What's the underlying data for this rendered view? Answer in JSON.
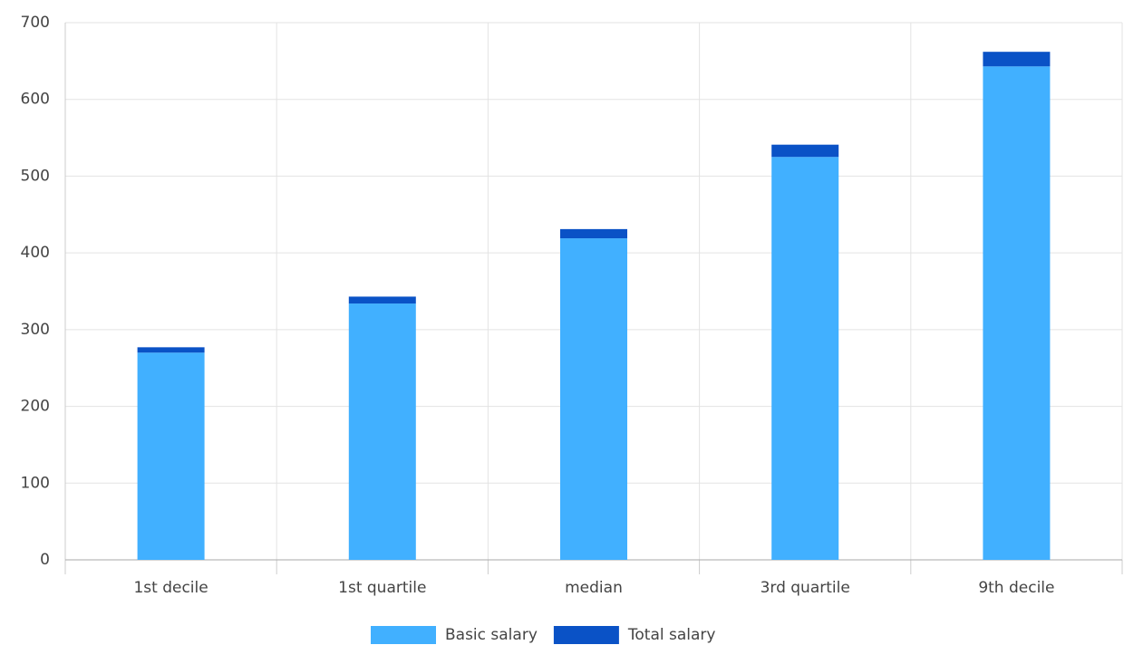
{
  "chart_data": {
    "type": "bar",
    "stacked": true,
    "categories": [
      "1st decile",
      "1st quartile",
      "median",
      "3rd quartile",
      "9th decile"
    ],
    "series": [
      {
        "name": "Basic salary",
        "color": "#41b0ff",
        "values": [
          270,
          334,
          419,
          525,
          643
        ]
      },
      {
        "name": "Total salary",
        "color": "#0a52c6",
        "values": [
          7,
          9,
          12,
          16,
          19
        ]
      }
    ],
    "ylim": [
      0,
      700
    ],
    "yticks": [
      0,
      100,
      200,
      300,
      400,
      500,
      600,
      700
    ],
    "grid": true,
    "legend": "bottom"
  }
}
